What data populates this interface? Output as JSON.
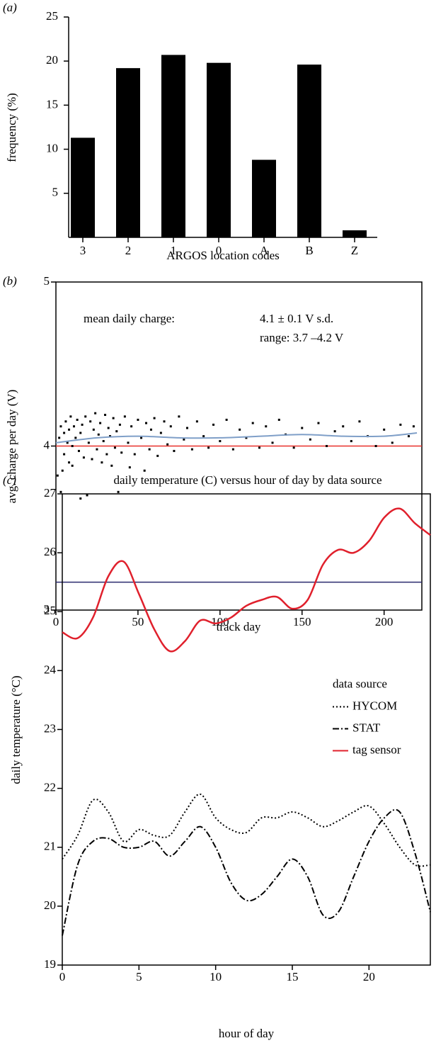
{
  "chart_data": [
    {
      "type": "bar",
      "panel_label": "(a)",
      "ylabel": "frequency (%)",
      "xlabel": "ARGOS location codes",
      "categories": [
        "3",
        "2",
        "1",
        "0",
        "A",
        "B",
        "Z"
      ],
      "values": [
        11.3,
        19.2,
        20.7,
        19.8,
        8.8,
        19.6,
        0.8
      ],
      "color": "#000000",
      "ylim": [
        0,
        25
      ],
      "yticks": [
        5,
        10,
        15,
        20,
        25
      ],
      "frame": false
    },
    {
      "type": "scatter",
      "panel_label": "(b)",
      "ylabel": "avg. charge per day (V)",
      "xlabel": "track day",
      "annotations": [
        "mean daily charge:",
        "4.1 ± 0.1 V s.d.",
        "range: 3.7 –4.2 V"
      ],
      "x": [
        1,
        2,
        3,
        3,
        4,
        5,
        5,
        6,
        7,
        8,
        8,
        9,
        10,
        10,
        11,
        12,
        13,
        14,
        15,
        15,
        16,
        17,
        18,
        19,
        20,
        21,
        22,
        23,
        24,
        25,
        26,
        27,
        28,
        29,
        30,
        31,
        32,
        33,
        34,
        35,
        36,
        37,
        38,
        39,
        40,
        42,
        44,
        45,
        46,
        48,
        50,
        52,
        54,
        55,
        57,
        58,
        60,
        62,
        64,
        66,
        68,
        70,
        72,
        75,
        78,
        80,
        83,
        86,
        90,
        93,
        96,
        100,
        104,
        108,
        112,
        116,
        120,
        124,
        128,
        132,
        136,
        140,
        145,
        150,
        155,
        160,
        165,
        170,
        175,
        180,
        185,
        190,
        195,
        200,
        205,
        210,
        215,
        218
      ],
      "values": [
        3.82,
        4.05,
        3.72,
        4.12,
        3.85,
        4.08,
        3.95,
        4.15,
        4.02,
        3.9,
        4.1,
        4.18,
        4.0,
        3.88,
        4.12,
        4.05,
        4.16,
        3.97,
        3.68,
        4.08,
        4.13,
        3.93,
        4.18,
        3.7,
        4.02,
        4.15,
        3.92,
        4.1,
        4.2,
        3.98,
        4.07,
        4.14,
        3.9,
        4.03,
        4.19,
        3.95,
        4.11,
        4.06,
        3.88,
        4.17,
        3.99,
        4.09,
        3.72,
        4.13,
        3.96,
        4.18,
        4.02,
        3.87,
        4.12,
        3.95,
        4.16,
        4.05,
        3.85,
        4.14,
        3.98,
        4.1,
        4.17,
        3.94,
        4.08,
        4.15,
        4.01,
        4.12,
        3.97,
        4.18,
        4.04,
        4.11,
        3.98,
        4.15,
        4.06,
        3.99,
        4.13,
        4.03,
        4.16,
        3.98,
        4.1,
        4.05,
        4.14,
        3.99,
        4.12,
        4.02,
        4.16,
        4.07,
        3.99,
        4.11,
        4.04,
        4.14,
        4.0,
        4.09,
        4.12,
        4.03,
        4.15,
        4.06,
        4.0,
        4.1,
        4.02,
        4.13,
        4.06,
        4.12
      ],
      "color": "#000000",
      "hlines": [
        {
          "value": 4.0,
          "color": "#e8302a"
        },
        {
          "value": 3.17,
          "color": "#2a2a6e"
        }
      ],
      "trend": {
        "x": [
          0,
          25,
          50,
          75,
          100,
          125,
          150,
          175,
          200,
          220
        ],
        "values": [
          4.02,
          4.05,
          4.06,
          4.05,
          4.05,
          4.06,
          4.07,
          4.06,
          4.06,
          4.08
        ],
        "color": "#7f9fc8"
      },
      "xlim": [
        0,
        223
      ],
      "xticks": [
        0,
        50,
        100,
        150,
        200
      ],
      "ylim": [
        3,
        5
      ],
      "yticks": [
        3,
        4,
        5
      ],
      "frame": true
    },
    {
      "type": "line",
      "panel_label": "(c)",
      "title": "daily temperature (C) versus hour of day by data source",
      "ylabel": "daily temperature (°C)",
      "xlabel": "hour of day",
      "legend": "right",
      "legend_title": "data source",
      "x": [
        0,
        1,
        2,
        3,
        4,
        5,
        6,
        7,
        8,
        9,
        10,
        11,
        12,
        13,
        14,
        15,
        16,
        17,
        18,
        19,
        20,
        21,
        22,
        23,
        24
      ],
      "series": [
        {
          "name": "HYCOM",
          "color": "#000000",
          "dash": "dotted",
          "values": [
            20.8,
            21.2,
            21.8,
            21.6,
            21.1,
            21.3,
            21.2,
            21.2,
            21.6,
            21.9,
            21.5,
            21.3,
            21.25,
            21.5,
            21.5,
            21.6,
            21.5,
            21.35,
            21.45,
            21.6,
            21.7,
            21.4,
            21.0,
            20.7,
            20.7
          ]
        },
        {
          "name": "STAT",
          "color": "#000000",
          "dash": "dashdot",
          "values": [
            19.5,
            20.7,
            21.1,
            21.15,
            21.0,
            21.0,
            21.1,
            20.85,
            21.1,
            21.35,
            21.0,
            20.4,
            20.1,
            20.2,
            20.5,
            20.8,
            20.5,
            19.85,
            19.9,
            20.5,
            21.1,
            21.5,
            21.6,
            20.9,
            19.9
          ]
        },
        {
          "name": "tag sensor",
          "color": "#e0202c",
          "dash": "solid",
          "values": [
            24.65,
            24.55,
            24.9,
            25.6,
            25.85,
            25.3,
            24.7,
            24.33,
            24.5,
            24.85,
            24.8,
            24.9,
            25.1,
            25.2,
            25.25,
            25.05,
            25.2,
            25.8,
            26.05,
            26.0,
            26.2,
            26.6,
            26.75,
            26.5,
            26.3
          ]
        }
      ],
      "xlim": [
        0,
        24
      ],
      "xticks": [
        0,
        5,
        10,
        15,
        20
      ],
      "ylim": [
        19,
        27
      ],
      "yticks": [
        19,
        20,
        21,
        22,
        23,
        24,
        25,
        26,
        27
      ],
      "frame": true
    }
  ]
}
